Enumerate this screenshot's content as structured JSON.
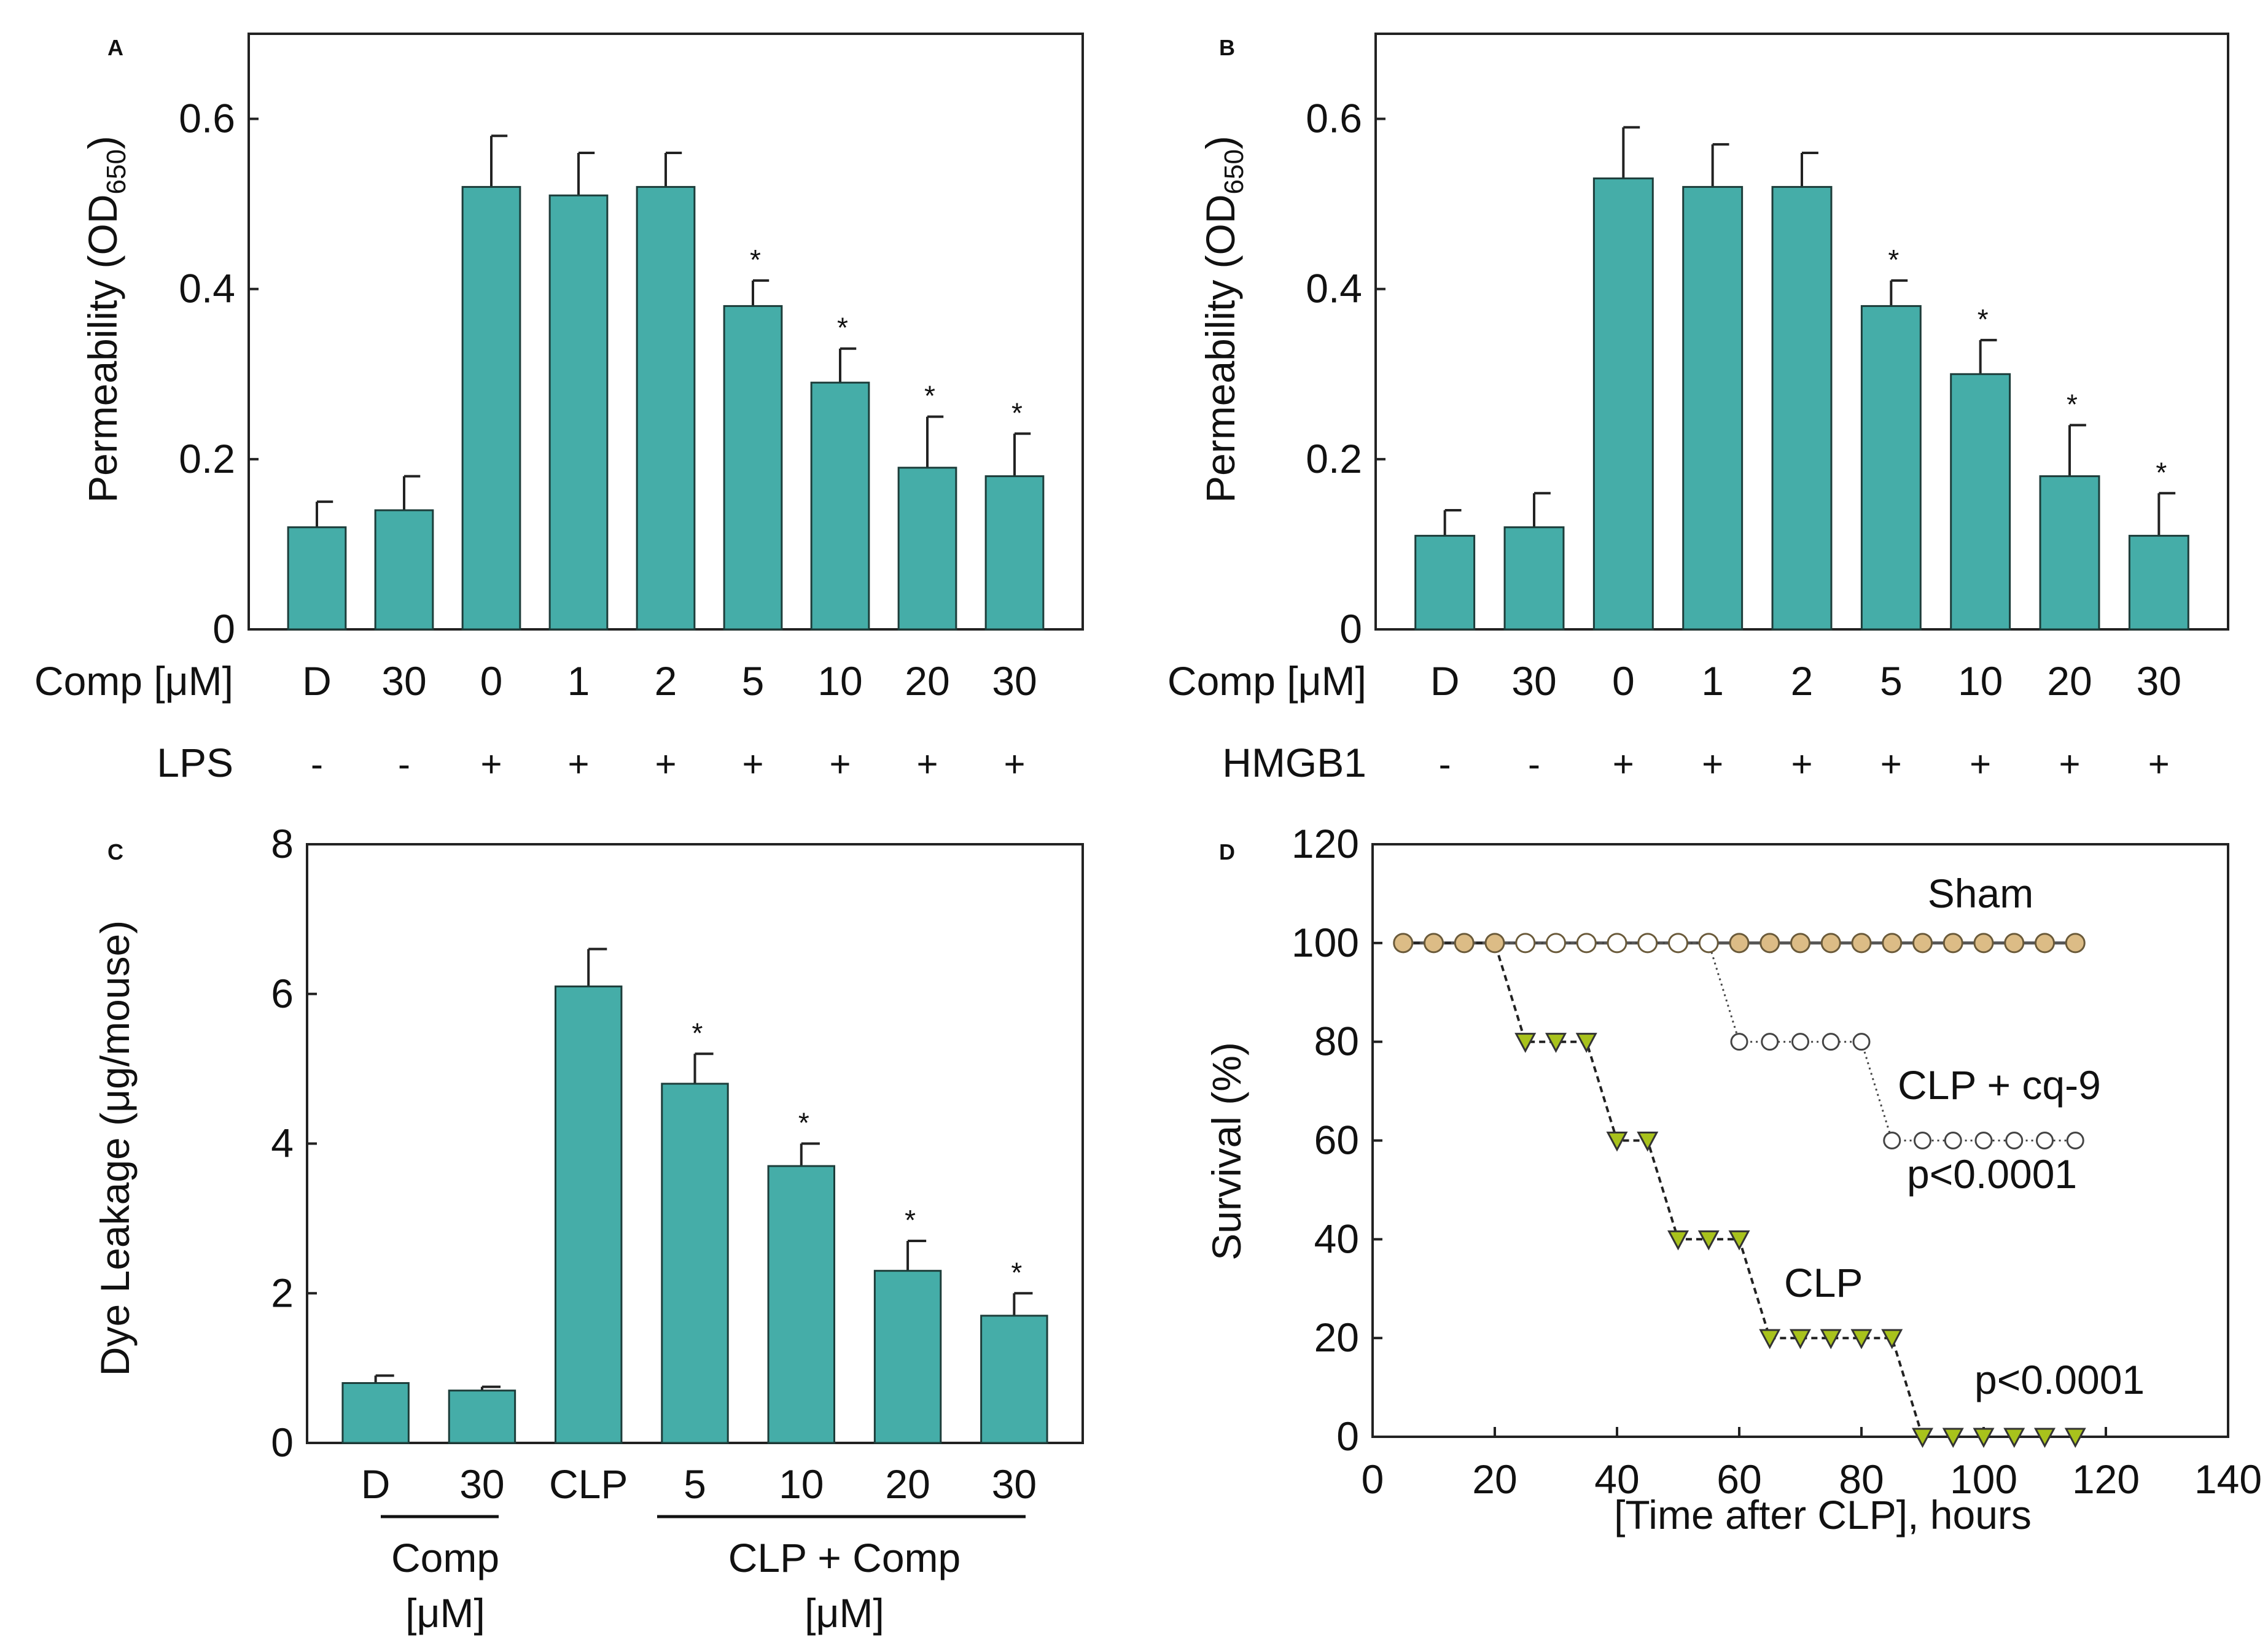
{
  "colors": {
    "bar": "#45ada8",
    "bar_edge": "#1d3d3a",
    "axis": "#222222",
    "sham": "#dcbc86",
    "clp": "#a8c21c",
    "open": "#ffffff"
  },
  "chart_data": [
    {
      "panel": "A",
      "type": "bar",
      "ylabel_main": "Permeability (OD",
      "ylabel_sub": "650",
      "ylabel_close": ")",
      "ylim": [
        0,
        0.7
      ],
      "yticks": [
        0,
        0.2,
        0.4,
        0.6
      ],
      "ytick_labels": [
        "0",
        "0.2",
        "0.4",
        "0.6"
      ],
      "row1_label": "Comp [μM]",
      "categories": [
        "D",
        "30",
        "0",
        "1",
        "2",
        "5",
        "10",
        "20",
        "30"
      ],
      "row2_label": "LPS",
      "row2": [
        "-",
        "-",
        "+",
        "+",
        "+",
        "+",
        "+",
        "+",
        "+"
      ],
      "values": [
        0.12,
        0.14,
        0.52,
        0.51,
        0.52,
        0.38,
        0.29,
        0.19,
        0.18
      ],
      "errors": [
        0.03,
        0.04,
        0.06,
        0.05,
        0.04,
        0.03,
        0.04,
        0.06,
        0.05
      ],
      "significant": [
        false,
        false,
        false,
        false,
        false,
        true,
        true,
        true,
        true
      ],
      "star": "*"
    },
    {
      "panel": "B",
      "type": "bar",
      "ylabel_main": "Permeability (OD",
      "ylabel_sub": "650",
      "ylabel_close": ")",
      "ylim": [
        0,
        0.7
      ],
      "yticks": [
        0,
        0.2,
        0.4,
        0.6
      ],
      "ytick_labels": [
        "0",
        "0.2",
        "0.4",
        "0.6"
      ],
      "row1_label": "Comp [μM]",
      "categories": [
        "D",
        "30",
        "0",
        "1",
        "2",
        "5",
        "10",
        "20",
        "30"
      ],
      "row2_label": "HMGB1",
      "row2": [
        "-",
        "-",
        "+",
        "+",
        "+",
        "+",
        "+",
        "+",
        "+"
      ],
      "values": [
        0.11,
        0.12,
        0.53,
        0.52,
        0.52,
        0.38,
        0.3,
        0.18,
        0.11
      ],
      "errors": [
        0.03,
        0.04,
        0.06,
        0.05,
        0.04,
        0.03,
        0.04,
        0.06,
        0.05
      ],
      "significant": [
        false,
        false,
        false,
        false,
        false,
        true,
        true,
        true,
        true
      ],
      "star": "*"
    },
    {
      "panel": "C",
      "type": "bar",
      "ylabel": "Dye Leakage (μg/mouse)",
      "ylim": [
        0,
        8
      ],
      "yticks": [
        0,
        2,
        4,
        6,
        8
      ],
      "ytick_labels": [
        "0",
        "2",
        "4",
        "6",
        "8"
      ],
      "categories": [
        "D",
        "30",
        "CLP",
        "5",
        "10",
        "20",
        "30"
      ],
      "values": [
        0.8,
        0.7,
        6.1,
        4.8,
        3.7,
        2.3,
        1.7
      ],
      "errors": [
        0.1,
        0.05,
        0.5,
        0.4,
        0.3,
        0.4,
        0.3
      ],
      "significant": [
        false,
        false,
        false,
        true,
        true,
        true,
        true
      ],
      "star": "*",
      "group1_line1": "Comp",
      "group1_line2": "[μM]",
      "group2_line1": "CLP + Comp",
      "group2_line2": "[μM]"
    },
    {
      "panel": "D",
      "type": "line",
      "ylabel": "Survival (%)",
      "xlabel": "[Time after CLP], hours",
      "xlim": [
        0,
        140
      ],
      "ylim": [
        0,
        120
      ],
      "xticks": [
        0,
        20,
        40,
        60,
        80,
        100,
        120,
        140
      ],
      "xtick_labels": [
        "0",
        "20",
        "40",
        "60",
        "80",
        "100",
        "120",
        "140"
      ],
      "yticks": [
        0,
        20,
        40,
        60,
        80,
        100,
        120
      ],
      "ytick_labels": [
        "0",
        "20",
        "40",
        "60",
        "80",
        "100",
        "120"
      ],
      "series": [
        {
          "name": "Sham",
          "marker": "filled-circle",
          "x": [
            5,
            10,
            15,
            20,
            25,
            30,
            35,
            40,
            45,
            50,
            55,
            60,
            65,
            70,
            75,
            80,
            85,
            90,
            95,
            100,
            105,
            110,
            115
          ],
          "y": [
            100,
            100,
            100,
            100,
            100,
            100,
            100,
            100,
            100,
            100,
            100,
            100,
            100,
            100,
            100,
            100,
            100,
            100,
            100,
            100,
            100,
            100,
            100
          ]
        },
        {
          "name": "CLP + cq-9",
          "marker": "open-circle",
          "x": [
            5,
            10,
            15,
            20,
            25,
            30,
            35,
            40,
            45,
            50,
            55,
            60,
            65,
            70,
            75,
            80,
            85,
            90,
            95,
            100,
            105,
            110,
            115
          ],
          "y": [
            100,
            100,
            100,
            100,
            100,
            100,
            100,
            100,
            100,
            100,
            100,
            80,
            80,
            80,
            80,
            80,
            60,
            60,
            60,
            60,
            60,
            60,
            60
          ]
        },
        {
          "name": "CLP",
          "marker": "triangle-down",
          "x": [
            5,
            10,
            15,
            20,
            25,
            30,
            35,
            40,
            45,
            50,
            55,
            60,
            65,
            70,
            75,
            80,
            85,
            90,
            95,
            100,
            105,
            110,
            115
          ],
          "y": [
            100,
            100,
            100,
            100,
            80,
            80,
            80,
            60,
            60,
            40,
            40,
            40,
            20,
            20,
            20,
            20,
            20,
            0,
            0,
            0,
            0,
            0,
            0
          ]
        }
      ],
      "annotations": [
        "Sham",
        "CLP + cq-9",
        "p<0.0001",
        "CLP",
        "p<0.0001"
      ]
    }
  ]
}
